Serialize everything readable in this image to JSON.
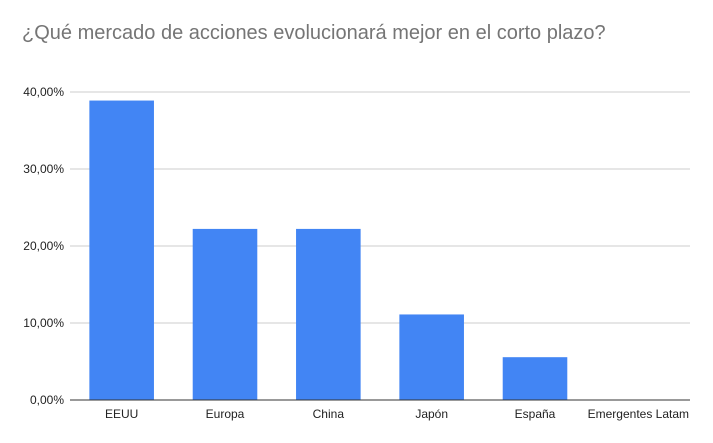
{
  "chart_data": {
    "type": "bar",
    "title": "¿Qué mercado de acciones evolucionará mejor en el corto plazo?",
    "categories": [
      "EEUU",
      "Europa",
      "China",
      "Japón",
      "España",
      "Emergentes Latam"
    ],
    "values": [
      38.89,
      22.22,
      22.22,
      11.11,
      5.56,
      0
    ],
    "ylim": [
      0,
      40
    ],
    "yticks": [
      0,
      10,
      20,
      30,
      40
    ],
    "ytick_labels": [
      "0,00%",
      "10,00%",
      "20,00%",
      "30,00%",
      "40,00%"
    ],
    "xlabel": "",
    "ylabel": "",
    "grid": true,
    "legend": "none",
    "bar_color": "#4285f4",
    "grid_color": "#cccccc",
    "axis_color": "#333333"
  }
}
